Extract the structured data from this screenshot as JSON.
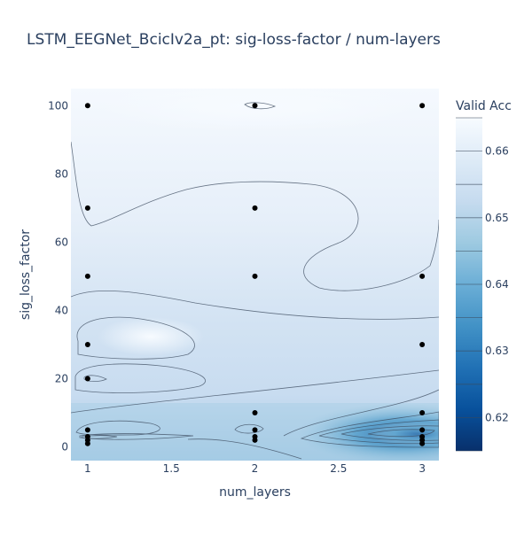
{
  "chart_data": {
    "type": "contour",
    "title": "LSTM_EEGNet_BcicIv2a_pt: sig-loss-factor / num-layers",
    "xlabel": "num_layers",
    "ylabel": "sig_loss_factor",
    "xlim": [
      0.9,
      3.1
    ],
    "ylim": [
      -4,
      105
    ],
    "x_ticks": [
      1,
      1.5,
      2,
      2.5,
      3
    ],
    "x_tick_labels": [
      "1",
      "1.5",
      "2",
      "2.5",
      "3"
    ],
    "y_ticks": [
      0,
      20,
      40,
      60,
      80,
      100
    ],
    "y_tick_labels": [
      "0",
      "20",
      "40",
      "60",
      "80",
      "100"
    ],
    "colorbar": {
      "title": "Valid Acc",
      "range": [
        0.615,
        0.665
      ],
      "ticks": [
        0.62,
        0.63,
        0.64,
        0.65,
        0.66
      ],
      "tick_labels": [
        "0.62",
        "0.63",
        "0.64",
        "0.65",
        "0.66"
      ],
      "colorscale": [
        "#08306b",
        "#08519c",
        "#2171b5",
        "#4292c6",
        "#6baed6",
        "#9ecae1",
        "#c6dbef",
        "#deebf7",
        "#f7fbff"
      ]
    },
    "points": [
      {
        "x": 1,
        "y": 100
      },
      {
        "x": 1,
        "y": 70
      },
      {
        "x": 1,
        "y": 50
      },
      {
        "x": 1,
        "y": 30
      },
      {
        "x": 1,
        "y": 20
      },
      {
        "x": 1,
        "y": 5
      },
      {
        "x": 1,
        "y": 3
      },
      {
        "x": 1,
        "y": 2
      },
      {
        "x": 1,
        "y": 1
      },
      {
        "x": 2,
        "y": 100
      },
      {
        "x": 2,
        "y": 70
      },
      {
        "x": 2,
        "y": 50
      },
      {
        "x": 2,
        "y": 10
      },
      {
        "x": 2,
        "y": 5
      },
      {
        "x": 2,
        "y": 3
      },
      {
        "x": 2,
        "y": 2
      },
      {
        "x": 3,
        "y": 100
      },
      {
        "x": 3,
        "y": 50
      },
      {
        "x": 3,
        "y": 30
      },
      {
        "x": 3,
        "y": 10
      },
      {
        "x": 3,
        "y": 5
      },
      {
        "x": 3,
        "y": 3
      },
      {
        "x": 3,
        "y": 2
      },
      {
        "x": 3,
        "y": 1
      }
    ]
  }
}
